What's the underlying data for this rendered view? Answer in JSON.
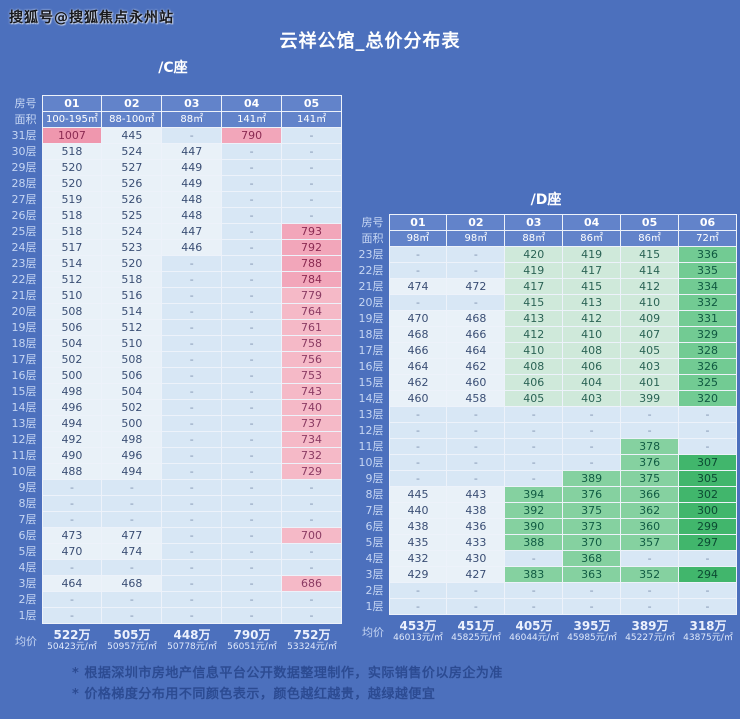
{
  "watermark": "搜狐号@搜狐焦点永州站",
  "labels": {
    "room": "房号",
    "area": "面积",
    "avg": "均价"
  },
  "footnotes": [
    "* 根据深圳市房地产信息平台公开数据整理制作，实际销售价以房企为准",
    "* 价格梯度分布用不同颜色表示，颜色越红越贵，越绿越便宜"
  ],
  "colors": {
    "page_bg": "#4c70bd",
    "header_cell_bg": "#6283ca",
    "grid_line": "#edf2fa",
    "empty_cell_bg": "#d8e7f5",
    "empty_cell_fg": "#7e91ae"
  },
  "chart_data": {
    "type": "heatmap",
    "title": "云祥公馆_总价分布表",
    "value_unit": "万元",
    "color_rule": "颜色越红越贵，越绿越便宜",
    "color_scale": [
      {
        "min": 1000,
        "bg": "#ef97ae",
        "fg": "#8b2a52"
      },
      {
        "min": 780,
        "bg": "#f2a6ba",
        "fg": "#8b2a52"
      },
      {
        "min": 680,
        "bg": "#f5b9c7",
        "fg": "#8b3b63"
      },
      {
        "min": 425,
        "bg": "#e9f1f8",
        "fg": "#3a4e74"
      },
      {
        "min": 395,
        "bg": "#cfe9da",
        "fg": "#2b6355"
      },
      {
        "min": 340,
        "bg": "#85d1a0",
        "fg": "#115c43"
      },
      {
        "min": 308,
        "bg": "#72cb93",
        "fg": "#0f5840"
      },
      {
        "min": 0,
        "bg": "#41b66c",
        "fg": "#0b4a32"
      }
    ],
    "tables": [
      {
        "name": "/C座",
        "columns": [
          "01",
          "02",
          "03",
          "04",
          "05"
        ],
        "areas": [
          "100-195㎡",
          "88-100㎡",
          "88㎡",
          "141㎡",
          "141㎡"
        ],
        "floors": [
          "31层",
          "30层",
          "29层",
          "28层",
          "27层",
          "26层",
          "25层",
          "24层",
          "23层",
          "22层",
          "21层",
          "20层",
          "19层",
          "18层",
          "17层",
          "16层",
          "15层",
          "14层",
          "13层",
          "12层",
          "11层",
          "10层",
          "9层",
          "8层",
          "7层",
          "6层",
          "5层",
          "4层",
          "3层",
          "2层",
          "1层"
        ],
        "values": [
          [
            "1007",
            "445",
            "-",
            "790",
            "-"
          ],
          [
            "518",
            "524",
            "447",
            "-",
            "-"
          ],
          [
            "520",
            "527",
            "449",
            "-",
            "-"
          ],
          [
            "520",
            "526",
            "449",
            "-",
            "-"
          ],
          [
            "519",
            "526",
            "448",
            "-",
            "-"
          ],
          [
            "518",
            "525",
            "448",
            "-",
            "-"
          ],
          [
            "518",
            "524",
            "447",
            "-",
            "793"
          ],
          [
            "517",
            "523",
            "446",
            "-",
            "792"
          ],
          [
            "514",
            "520",
            "-",
            "-",
            "788"
          ],
          [
            "512",
            "518",
            "-",
            "-",
            "784"
          ],
          [
            "510",
            "516",
            "-",
            "-",
            "779"
          ],
          [
            "508",
            "514",
            "-",
            "-",
            "764"
          ],
          [
            "506",
            "512",
            "-",
            "-",
            "761"
          ],
          [
            "504",
            "510",
            "-",
            "-",
            "758"
          ],
          [
            "502",
            "508",
            "-",
            "-",
            "756"
          ],
          [
            "500",
            "506",
            "-",
            "-",
            "753"
          ],
          [
            "498",
            "504",
            "-",
            "-",
            "743"
          ],
          [
            "496",
            "502",
            "-",
            "-",
            "740"
          ],
          [
            "494",
            "500",
            "-",
            "-",
            "737"
          ],
          [
            "492",
            "498",
            "-",
            "-",
            "734"
          ],
          [
            "490",
            "496",
            "-",
            "-",
            "732"
          ],
          [
            "488",
            "494",
            "-",
            "-",
            "729"
          ],
          [
            "-",
            "-",
            "-",
            "-",
            "-"
          ],
          [
            "-",
            "-",
            "-",
            "-",
            "-"
          ],
          [
            "-",
            "-",
            "-",
            "-",
            "-"
          ],
          [
            "473",
            "477",
            "-",
            "-",
            "700"
          ],
          [
            "470",
            "474",
            "-",
            "-",
            "-"
          ],
          [
            "-",
            "-",
            "-",
            "-",
            "-"
          ],
          [
            "464",
            "468",
            "-",
            "-",
            "686"
          ],
          [
            "-",
            "-",
            "-",
            "-",
            "-"
          ],
          [
            "-",
            "-",
            "-",
            "-",
            "-"
          ]
        ],
        "avg_wan": [
          "522万",
          "505万",
          "448万",
          "790万",
          "752万"
        ],
        "avg_per_sqm": [
          "50423元/㎡",
          "50957元/㎡",
          "50778元/㎡",
          "56051元/㎡",
          "53324元/㎡"
        ]
      },
      {
        "name": "/D座",
        "columns": [
          "01",
          "02",
          "03",
          "04",
          "05",
          "06"
        ],
        "areas": [
          "98㎡",
          "98㎡",
          "88㎡",
          "86㎡",
          "86㎡",
          "72㎡"
        ],
        "floors": [
          "23层",
          "22层",
          "21层",
          "20层",
          "19层",
          "18层",
          "17层",
          "16层",
          "15层",
          "14层",
          "13层",
          "12层",
          "11层",
          "10层",
          "9层",
          "8层",
          "7层",
          "6层",
          "5层",
          "4层",
          "3层",
          "2层",
          "1层"
        ],
        "values": [
          [
            "-",
            "-",
            "420",
            "419",
            "415",
            "336"
          ],
          [
            "-",
            "-",
            "419",
            "417",
            "414",
            "335"
          ],
          [
            "474",
            "472",
            "417",
            "415",
            "412",
            "334"
          ],
          [
            "-",
            "-",
            "415",
            "413",
            "410",
            "332"
          ],
          [
            "470",
            "468",
            "413",
            "412",
            "409",
            "331"
          ],
          [
            "468",
            "466",
            "412",
            "410",
            "407",
            "329"
          ],
          [
            "466",
            "464",
            "410",
            "408",
            "405",
            "328"
          ],
          [
            "464",
            "462",
            "408",
            "406",
            "403",
            "326"
          ],
          [
            "462",
            "460",
            "406",
            "404",
            "401",
            "325"
          ],
          [
            "460",
            "458",
            "405",
            "403",
            "399",
            "320"
          ],
          [
            "-",
            "-",
            "-",
            "-",
            "-",
            "-"
          ],
          [
            "-",
            "-",
            "-",
            "-",
            "-",
            "-"
          ],
          [
            "-",
            "-",
            "-",
            "-",
            "378",
            "-"
          ],
          [
            "-",
            "-",
            "-",
            "-",
            "376",
            "307"
          ],
          [
            "-",
            "-",
            "-",
            "389",
            "375",
            "305"
          ],
          [
            "445",
            "443",
            "394",
            "376",
            "366",
            "302"
          ],
          [
            "440",
            "438",
            "392",
            "375",
            "362",
            "300"
          ],
          [
            "438",
            "436",
            "390",
            "373",
            "360",
            "299"
          ],
          [
            "435",
            "433",
            "388",
            "370",
            "357",
            "297"
          ],
          [
            "432",
            "430",
            "-",
            "368",
            "-",
            "-"
          ],
          [
            "429",
            "427",
            "383",
            "363",
            "352",
            "294"
          ],
          [
            "-",
            "-",
            "-",
            "-",
            "-",
            "-"
          ],
          [
            "-",
            "-",
            "-",
            "-",
            "-",
            "-"
          ]
        ],
        "avg_wan": [
          "453万",
          "451万",
          "405万",
          "395万",
          "389万",
          "318万"
        ],
        "avg_per_sqm": [
          "46013元/㎡",
          "45825元/㎡",
          "46044元/㎡",
          "45985元/㎡",
          "45227元/㎡",
          "43875元/㎡"
        ]
      }
    ]
  }
}
